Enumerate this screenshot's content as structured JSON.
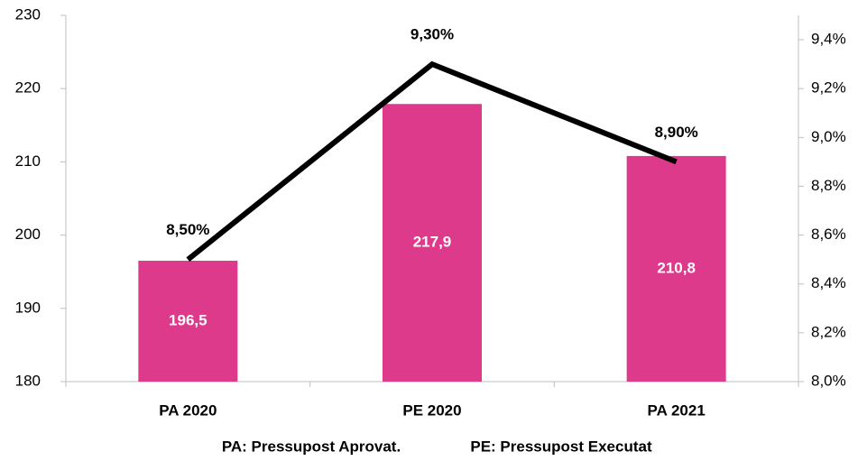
{
  "chart_data": {
    "type": "bar_line",
    "categories": [
      "PA 2020",
      "PE 2020",
      "PA 2021"
    ],
    "series": [
      {
        "type": "bar",
        "color": "#de3a8c",
        "values": [
          196.5,
          217.9,
          210.8
        ],
        "value_labels": [
          "196,5",
          "217,9",
          "210,8"
        ]
      },
      {
        "type": "line",
        "axis": "y2",
        "color": "#000000",
        "values": [
          8.5,
          9.3,
          8.9
        ],
        "value_labels": [
          "8,50%",
          "9,30%",
          "8,90%"
        ]
      }
    ],
    "ylim": [
      180,
      230
    ],
    "yticks": [
      180,
      190,
      200,
      210,
      220,
      230
    ],
    "y2lim": [
      8.0,
      9.5
    ],
    "y2ticks": [
      {
        "value": 8.0,
        "label": "8,0%"
      },
      {
        "value": 8.2,
        "label": "8,2%"
      },
      {
        "value": 8.4,
        "label": "8,4%"
      },
      {
        "value": 8.6,
        "label": "8,6%"
      },
      {
        "value": 8.8,
        "label": "8,8%"
      },
      {
        "value": 9.0,
        "label": "9,0%"
      },
      {
        "value": 9.2,
        "label": "9,2%"
      },
      {
        "value": 9.4,
        "label": "9,4%"
      }
    ],
    "grid": false,
    "notes": [
      "PA:  Pressupost Aprovat.",
      "PE:  Pressupost Executat"
    ]
  }
}
